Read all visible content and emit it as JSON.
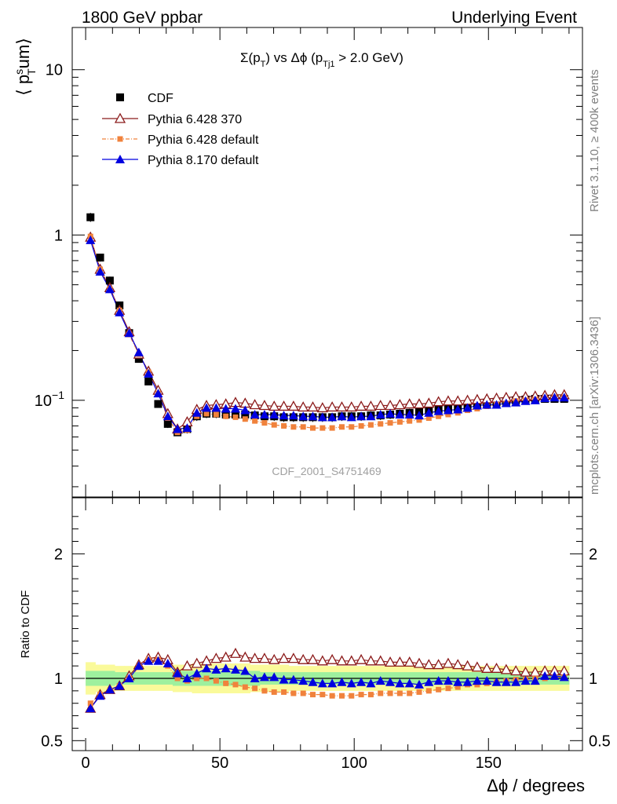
{
  "header": {
    "left": "1800 GeV ppbar",
    "right": "Underlying Event",
    "side_top": "Rivet 3.1.10, ≥ 400k events",
    "side_bottom": "mcplots.cern.ch [arXiv:1306.3436]",
    "watermark": "CDF_2001_S4751469"
  },
  "colors": {
    "cdf": "#000000",
    "py370": "#8b1a1a",
    "pydef": "#f0823c",
    "py8": "#0000e0",
    "band_inner": "#9ef09e",
    "band_outer": "#fafa9a"
  },
  "chart_data": [
    {
      "type": "scatter",
      "title_parts": [
        "Σ(p",
        "T",
        ") vs Δϕ (p",
        "Tj1",
        " > 2.0 GeV)"
      ],
      "ylabel_parts": [
        "⟨ p",
        "s",
        "T",
        "um⟩"
      ],
      "yscale": "log",
      "ylim": [
        0.026,
        18
      ],
      "xlim": [
        -5,
        185
      ],
      "y_ticklabels": [
        {
          "value": 10,
          "label": "10"
        },
        {
          "value": 1,
          "label": "1"
        },
        {
          "value": 0.1,
          "label": "10",
          "sup": "−1"
        }
      ],
      "legend": {
        "placement": "top-left",
        "entries": [
          "CDF",
          "Pythia 6.428 370",
          "Pythia 6.428 default",
          "Pythia 8.170 default"
        ]
      },
      "x": [
        1.8,
        5.4,
        9.0,
        12.6,
        16.2,
        19.8,
        23.4,
        27.0,
        30.6,
        34.2,
        37.8,
        41.4,
        45.0,
        48.6,
        52.2,
        55.8,
        59.4,
        63.0,
        66.6,
        70.2,
        73.8,
        77.4,
        81.0,
        84.6,
        88.2,
        91.8,
        95.4,
        99.0,
        102.6,
        106.2,
        109.8,
        113.4,
        117.0,
        120.6,
        124.2,
        127.8,
        131.4,
        135.0,
        138.6,
        142.2,
        145.8,
        149.4,
        153.0,
        156.6,
        160.2,
        163.8,
        167.4,
        171.0,
        174.6,
        178.2
      ],
      "series": [
        {
          "name": "CDF",
          "marker": "square",
          "y": [
            1.28,
            0.73,
            0.53,
            0.375,
            0.255,
            0.178,
            0.13,
            0.095,
            0.072,
            0.064,
            0.067,
            0.08,
            0.083,
            0.083,
            0.082,
            0.082,
            0.082,
            0.081,
            0.08,
            0.08,
            0.079,
            0.079,
            0.079,
            0.079,
            0.079,
            0.079,
            0.08,
            0.08,
            0.08,
            0.081,
            0.081,
            0.082,
            0.083,
            0.084,
            0.085,
            0.087,
            0.088,
            0.089,
            0.09,
            0.092,
            0.094,
            0.096,
            0.097,
            0.098,
            0.1,
            0.101,
            0.102,
            0.102,
            0.102,
            0.102
          ],
          "err_lo": [
            1.2,
            0.69,
            0.5,
            0.355,
            0.243,
            0.17,
            0.124,
            0.09,
            0.068,
            0.061,
            0.063,
            0.075,
            0.078,
            0.078,
            0.077,
            0.077,
            0.077,
            0.076,
            0.075,
            0.075,
            0.074,
            0.074,
            0.074,
            0.074,
            0.074,
            0.074,
            0.075,
            0.075,
            0.075,
            0.076,
            0.076,
            0.077,
            0.078,
            0.079,
            0.08,
            0.082,
            0.083,
            0.084,
            0.085,
            0.087,
            0.089,
            0.091,
            0.092,
            0.093,
            0.095,
            0.096,
            0.097,
            0.097,
            0.097,
            0.097
          ],
          "err_hi": [
            1.36,
            0.77,
            0.56,
            0.395,
            0.268,
            0.187,
            0.137,
            0.1,
            0.076,
            0.068,
            0.071,
            0.085,
            0.088,
            0.088,
            0.087,
            0.087,
            0.087,
            0.086,
            0.085,
            0.085,
            0.084,
            0.084,
            0.084,
            0.084,
            0.084,
            0.084,
            0.085,
            0.085,
            0.085,
            0.086,
            0.086,
            0.087,
            0.088,
            0.089,
            0.09,
            0.092,
            0.093,
            0.094,
            0.095,
            0.097,
            0.099,
            0.101,
            0.102,
            0.103,
            0.105,
            0.106,
            0.107,
            0.107,
            0.107,
            0.107
          ]
        },
        {
          "name": "Pythia 6.428 370",
          "marker": "triangle-open",
          "y": [
            0.97,
            0.62,
            0.48,
            0.35,
            0.26,
            0.19,
            0.15,
            0.115,
            0.083,
            0.067,
            0.074,
            0.088,
            0.093,
            0.094,
            0.095,
            0.097,
            0.096,
            0.094,
            0.093,
            0.092,
            0.092,
            0.092,
            0.091,
            0.091,
            0.09,
            0.091,
            0.091,
            0.091,
            0.092,
            0.092,
            0.093,
            0.093,
            0.094,
            0.095,
            0.095,
            0.096,
            0.098,
            0.099,
            0.099,
            0.1,
            0.101,
            0.102,
            0.103,
            0.104,
            0.105,
            0.105,
            0.106,
            0.107,
            0.108,
            0.108
          ]
        },
        {
          "name": "Pythia 6.428 default",
          "marker": "square-small",
          "y": [
            0.98,
            0.62,
            0.47,
            0.35,
            0.25,
            0.19,
            0.148,
            0.11,
            0.078,
            0.064,
            0.066,
            0.08,
            0.083,
            0.082,
            0.08,
            0.079,
            0.077,
            0.075,
            0.073,
            0.071,
            0.07,
            0.069,
            0.069,
            0.068,
            0.068,
            0.068,
            0.069,
            0.069,
            0.07,
            0.071,
            0.072,
            0.073,
            0.074,
            0.075,
            0.076,
            0.078,
            0.08,
            0.082,
            0.084,
            0.087,
            0.089,
            0.092,
            0.094,
            0.096,
            0.099,
            0.1,
            0.101,
            0.102,
            0.104,
            0.104
          ]
        },
        {
          "name": "Pythia 8.170 default",
          "marker": "triangle",
          "y": [
            0.93,
            0.6,
            0.47,
            0.34,
            0.255,
            0.195,
            0.145,
            0.11,
            0.08,
            0.067,
            0.068,
            0.084,
            0.09,
            0.09,
            0.089,
            0.089,
            0.087,
            0.082,
            0.082,
            0.082,
            0.081,
            0.081,
            0.08,
            0.08,
            0.079,
            0.079,
            0.08,
            0.079,
            0.08,
            0.08,
            0.082,
            0.083,
            0.082,
            0.082,
            0.081,
            0.084,
            0.086,
            0.087,
            0.088,
            0.09,
            0.093,
            0.094,
            0.094,
            0.096,
            0.097,
            0.099,
            0.1,
            0.103,
            0.104,
            0.104
          ]
        }
      ]
    },
    {
      "type": "line",
      "ylabel": "Ratio to CDF",
      "xlabel": "Δϕ / degrees",
      "ylim": [
        0.42,
        2.45
      ],
      "xlim": [
        -5,
        185
      ],
      "x_ticklabels": [
        0,
        50,
        100,
        150
      ],
      "y_ticklabels": [
        {
          "value": 2,
          "label": "2"
        },
        {
          "value": 1,
          "label": "1"
        },
        {
          "value": 0.5,
          "label": "0.5"
        }
      ],
      "band_inner": [
        0.06,
        0.06,
        0.06,
        0.05,
        0.05,
        0.05,
        0.05,
        0.05,
        0.05,
        0.06,
        0.06,
        0.06,
        0.06,
        0.06,
        0.06,
        0.06,
        0.06,
        0.06,
        0.05,
        0.05,
        0.05,
        0.05,
        0.05,
        0.05,
        0.05,
        0.05,
        0.05,
        0.05,
        0.05,
        0.05,
        0.05,
        0.05,
        0.05,
        0.05,
        0.05,
        0.05,
        0.05,
        0.05,
        0.05,
        0.05,
        0.05,
        0.05,
        0.05,
        0.05,
        0.05,
        0.05,
        0.05,
        0.05,
        0.05,
        0.05
      ],
      "band_outer": [
        0.13,
        0.11,
        0.11,
        0.1,
        0.1,
        0.1,
        0.1,
        0.1,
        0.1,
        0.11,
        0.11,
        0.12,
        0.12,
        0.12,
        0.12,
        0.12,
        0.12,
        0.11,
        0.11,
        0.11,
        0.11,
        0.1,
        0.1,
        0.1,
        0.1,
        0.1,
        0.1,
        0.1,
        0.1,
        0.1,
        0.1,
        0.1,
        0.1,
        0.1,
        0.1,
        0.1,
        0.1,
        0.1,
        0.1,
        0.1,
        0.1,
        0.1,
        0.1,
        0.1,
        0.1,
        0.1,
        0.1,
        0.1,
        0.1,
        0.1
      ],
      "series": [
        {
          "name": "Pythia 6.428 370",
          "marker": "triangle-open",
          "y": [
            0.76,
            0.87,
            0.91,
            0.94,
            1.02,
            1.11,
            1.16,
            1.17,
            1.15,
            1.05,
            1.1,
            1.12,
            1.14,
            1.16,
            1.17,
            1.2,
            1.17,
            1.16,
            1.16,
            1.15,
            1.16,
            1.16,
            1.15,
            1.15,
            1.14,
            1.15,
            1.14,
            1.14,
            1.15,
            1.14,
            1.14,
            1.13,
            1.13,
            1.13,
            1.12,
            1.11,
            1.11,
            1.12,
            1.11,
            1.1,
            1.09,
            1.08,
            1.08,
            1.07,
            1.06,
            1.05,
            1.05,
            1.06,
            1.06,
            1.06
          ]
        },
        {
          "name": "Pythia 6.428 default",
          "marker": "square-small",
          "y": [
            0.8,
            0.87,
            0.9,
            0.94,
            1.0,
            1.09,
            1.15,
            1.15,
            1.1,
            1.0,
            0.98,
            1.0,
            1.0,
            0.98,
            0.96,
            0.95,
            0.93,
            0.92,
            0.9,
            0.89,
            0.89,
            0.88,
            0.88,
            0.87,
            0.87,
            0.86,
            0.86,
            0.86,
            0.87,
            0.87,
            0.88,
            0.88,
            0.88,
            0.88,
            0.89,
            0.9,
            0.91,
            0.92,
            0.93,
            0.95,
            0.95,
            0.96,
            0.97,
            0.98,
            0.99,
            0.99,
            1.0,
            1.0,
            1.01,
            1.01
          ]
        },
        {
          "name": "Pythia 8.170 default",
          "marker": "triangle",
          "y": [
            0.76,
            0.86,
            0.91,
            0.94,
            1.0,
            1.1,
            1.14,
            1.14,
            1.12,
            1.04,
            1.0,
            1.04,
            1.08,
            1.07,
            1.08,
            1.07,
            1.06,
            1.0,
            1.01,
            1.01,
            0.99,
            0.99,
            0.98,
            0.97,
            0.96,
            0.96,
            0.97,
            0.96,
            0.97,
            0.96,
            0.98,
            0.97,
            0.96,
            0.96,
            0.95,
            0.97,
            0.98,
            0.98,
            0.97,
            0.97,
            0.98,
            0.98,
            0.97,
            0.97,
            0.97,
            0.98,
            0.98,
            1.02,
            1.02,
            1.01
          ]
        }
      ]
    }
  ]
}
